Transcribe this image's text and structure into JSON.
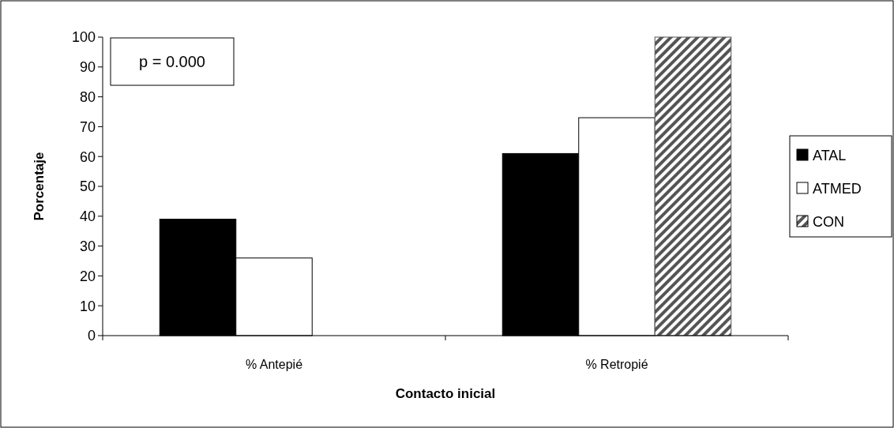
{
  "chart_data": {
    "type": "bar",
    "xlabel": "Contacto inicial",
    "ylabel": "Porcentaje",
    "categories": [
      "% Antepié",
      "% Retropié"
    ],
    "series": [
      {
        "name": "ATAL",
        "color": "#000000",
        "values": [
          39,
          61
        ]
      },
      {
        "name": "ATMED",
        "color": "#ffffff",
        "values": [
          26,
          73
        ]
      },
      {
        "name": "CON",
        "color": "#555555",
        "values": [
          0,
          100
        ]
      }
    ],
    "ylim": [
      0,
      100
    ],
    "yticks": [
      0,
      10,
      20,
      30,
      40,
      50,
      60,
      70,
      80,
      90,
      100
    ],
    "grid": false,
    "legend": "right",
    "annotations": [
      "p = 0.000"
    ]
  }
}
